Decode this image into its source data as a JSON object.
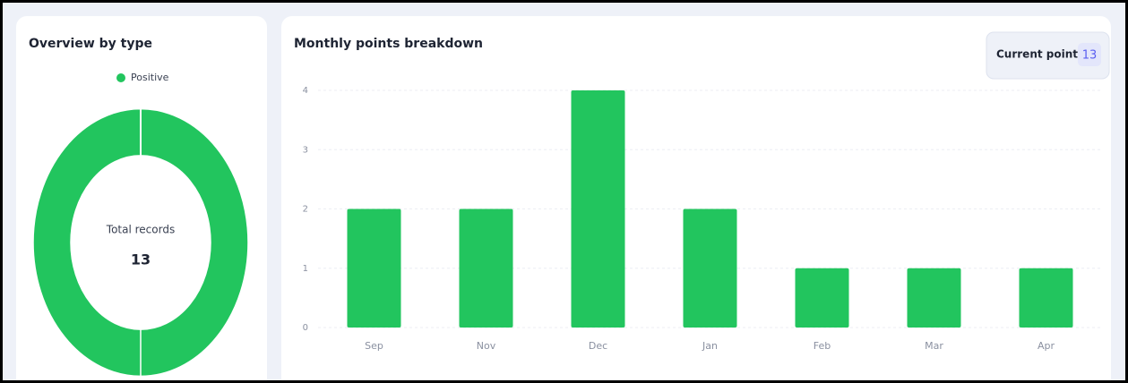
{
  "chart_data": [
    {
      "type": "pie",
      "title": "Overview by type",
      "categories": [
        "Positive"
      ],
      "values": [
        13
      ],
      "colors": [
        "#22c55e"
      ],
      "center_label": "Total records",
      "center_value": 13,
      "legend": "top"
    },
    {
      "type": "bar",
      "title": "Monthly points breakdown",
      "badge_label": "Current points",
      "badge_value": 13,
      "categories": [
        "Sep",
        "Nov",
        "Dec",
        "Jan",
        "Feb",
        "Mar",
        "Apr"
      ],
      "values": [
        2,
        2,
        4,
        2,
        1,
        1,
        1
      ],
      "color": "#22c55e",
      "ylim": [
        0,
        4
      ],
      "yticks": [
        0,
        1,
        2,
        3,
        4
      ],
      "grid": true
    }
  ]
}
